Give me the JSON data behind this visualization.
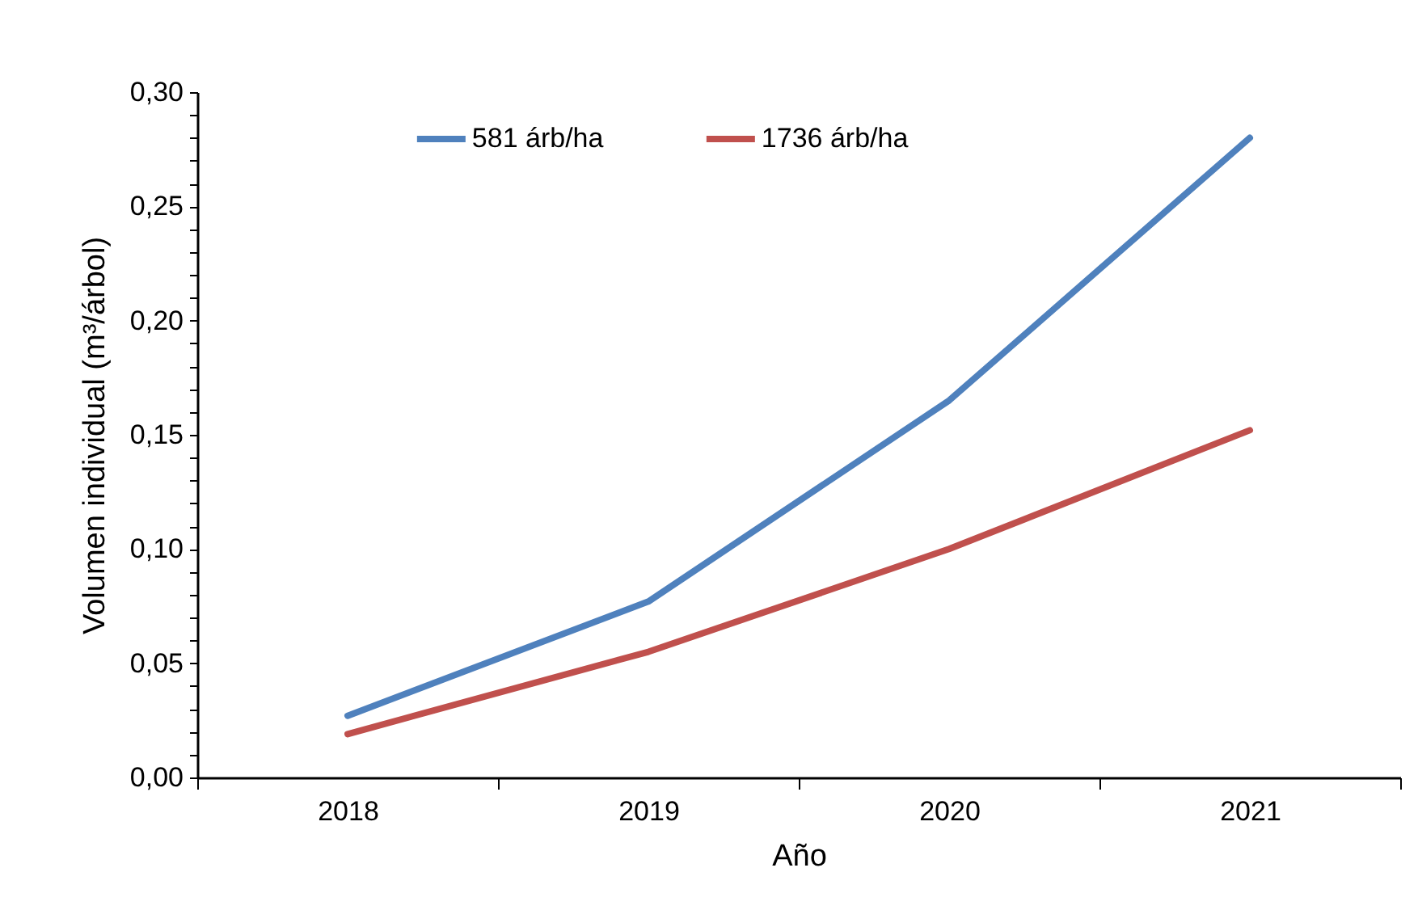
{
  "chart_data": {
    "type": "line",
    "xlabel": "Año",
    "ylabel": "Volumen individual (m³/árbol)",
    "categories": [
      "2018",
      "2019",
      "2020",
      "2021"
    ],
    "series": [
      {
        "name": "581 árb/ha",
        "color": "#4f81bd",
        "values": [
          0.027,
          0.077,
          0.165,
          0.28
        ]
      },
      {
        "name": "1736 árb/ha",
        "color": "#c0504d",
        "values": [
          0.019,
          0.055,
          0.1,
          0.152
        ]
      }
    ],
    "ylim": [
      0,
      0.3
    ],
    "yticks": [
      {
        "value": 0,
        "label": "0,00"
      },
      {
        "value": 0.01,
        "label": null
      },
      {
        "value": 0.02,
        "label": null
      },
      {
        "value": 0.03,
        "label": null
      },
      {
        "value": 0.04,
        "label": null
      },
      {
        "value": 0.05,
        "label": "0,05"
      },
      {
        "value": 0.06,
        "label": null
      },
      {
        "value": 0.07,
        "label": null
      },
      {
        "value": 0.08,
        "label": null
      },
      {
        "value": 0.09,
        "label": null
      },
      {
        "value": 0.1,
        "label": "0,10"
      },
      {
        "value": 0.11,
        "label": null
      },
      {
        "value": 0.12,
        "label": null
      },
      {
        "value": 0.13,
        "label": null
      },
      {
        "value": 0.14,
        "label": null
      },
      {
        "value": 0.15,
        "label": "0,15"
      },
      {
        "value": 0.16,
        "label": null
      },
      {
        "value": 0.17,
        "label": null
      },
      {
        "value": 0.18,
        "label": null
      },
      {
        "value": 0.19,
        "label": null
      },
      {
        "value": 0.2,
        "label": "0,20"
      },
      {
        "value": 0.21,
        "label": null
      },
      {
        "value": 0.22,
        "label": null
      },
      {
        "value": 0.23,
        "label": null
      },
      {
        "value": 0.24,
        "label": null
      },
      {
        "value": 0.25,
        "label": "0,25"
      },
      {
        "value": 0.26,
        "label": null
      },
      {
        "value": 0.27,
        "label": null
      },
      {
        "value": 0.28,
        "label": null
      },
      {
        "value": 0.29,
        "label": null
      },
      {
        "value": 0.3,
        "label": "0,30"
      }
    ],
    "legend": "top",
    "line_style": "solid",
    "grid": false
  }
}
